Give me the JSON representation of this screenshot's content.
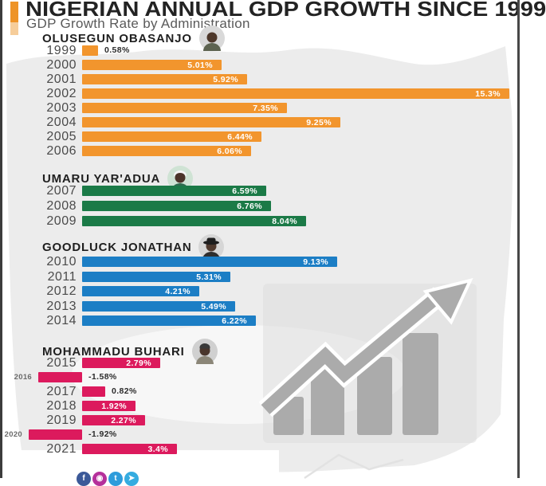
{
  "header": {
    "title": "NIGERIAN ANNUAL GDP GROWTH SINCE 1999",
    "subtitle": "GDP Growth Rate by Administration"
  },
  "accent_color": "#EE9428",
  "background": {
    "map_silhouette": "nigeria-map-silhouette",
    "map_color": "#ECECEC",
    "growth_arrow": "growth-chart-arrow-graphic",
    "arrow_color": "#ABABAB"
  },
  "chart_data": {
    "type": "bar",
    "orientation": "horizontal",
    "unit": "percent",
    "title": "NIGERIAN ANNUAL GDP GROWTH SINCE 1999",
    "subtitle": "GDP Growth Rate by Administration",
    "xlim": [
      -2,
      15.5
    ],
    "grid": false,
    "legend": "grouped by administration with president name headers",
    "sections": [
      {
        "president": "OLUSEGUN OBASANJO",
        "color": "#F2952D",
        "avatar": "obasanjo-photo",
        "years": [
          {
            "year": "1999",
            "value": 0.58,
            "label": "0.58%"
          },
          {
            "year": "2000",
            "value": 5.01,
            "label": "5.01%"
          },
          {
            "year": "2001",
            "value": 5.92,
            "label": "5.92%"
          },
          {
            "year": "2002",
            "value": 15.3,
            "label": "15.3%"
          },
          {
            "year": "2003",
            "value": 7.35,
            "label": "7.35%"
          },
          {
            "year": "2004",
            "value": 9.25,
            "label": "9.25%"
          },
          {
            "year": "2005",
            "value": 6.44,
            "label": "6.44%"
          },
          {
            "year": "2006",
            "value": 6.06,
            "label": "6.06%"
          }
        ]
      },
      {
        "president": "UMARU YAR'ADUA",
        "color": "#1B7A47",
        "avatar": "yaradua-photo",
        "years": [
          {
            "year": "2007",
            "value": 6.59,
            "label": "6.59%"
          },
          {
            "year": "2008",
            "value": 6.76,
            "label": "6.76%"
          },
          {
            "year": "2009",
            "value": 8.04,
            "label": "8.04%"
          }
        ]
      },
      {
        "president": "GOODLUCK JONATHAN",
        "color": "#1C7EC5",
        "avatar": "jonathan-photo",
        "years": [
          {
            "year": "2010",
            "value": 9.13,
            "label": "9.13%"
          },
          {
            "year": "2011",
            "value": 5.31,
            "label": "5.31%"
          },
          {
            "year": "2012",
            "value": 4.21,
            "label": "4.21%"
          },
          {
            "year": "2013",
            "value": 5.49,
            "label": "5.49%"
          },
          {
            "year": "2014",
            "value": 6.22,
            "label": "6.22%"
          }
        ]
      },
      {
        "president": "MOHAMMADU BUHARI",
        "color": "#DC1A5D",
        "avatar": "buhari-photo",
        "years": [
          {
            "year": "2015",
            "value": 2.79,
            "label": "2.79%"
          },
          {
            "year": "2016",
            "value": -1.58,
            "label": "-1.58%"
          },
          {
            "year": "2017",
            "value": 0.82,
            "label": "0.82%"
          },
          {
            "year": "2018",
            "value": 1.92,
            "label": "1.92%"
          },
          {
            "year": "2019",
            "value": 2.27,
            "label": "2.27%"
          },
          {
            "year": "2020",
            "value": -1.92,
            "label": "-1.92%"
          },
          {
            "year": "2021",
            "value": 3.4,
            "label": "3.4%"
          }
        ]
      }
    ]
  },
  "footer": {
    "social_icons": [
      {
        "name": "facebook-icon",
        "color": "#3B5998",
        "glyph": "f"
      },
      {
        "name": "instagram-icon",
        "color": "#B5309B",
        "glyph": "◉"
      },
      {
        "name": "twitter-icon",
        "color": "#2D9CDB",
        "glyph": "t"
      },
      {
        "name": "telegram-icon",
        "color": "#35ACE0",
        "glyph": "➤"
      }
    ]
  }
}
